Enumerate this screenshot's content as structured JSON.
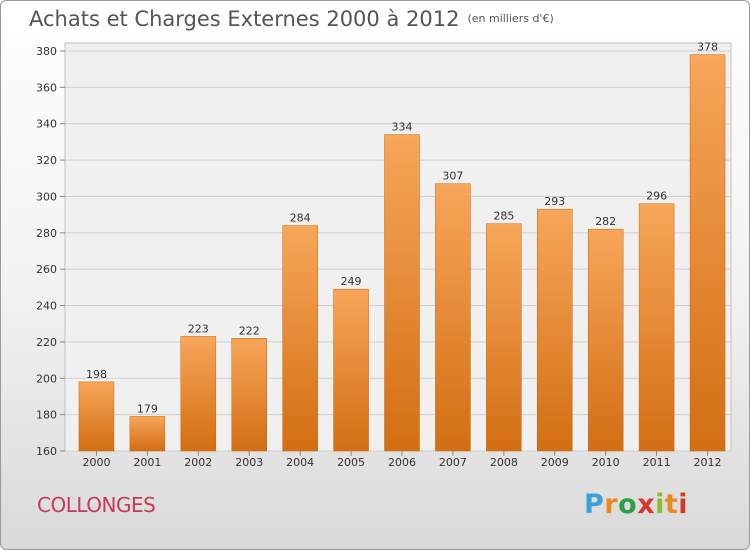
{
  "title": "Achats et Charges Externes 2000 à 2012",
  "subtitle": "(en milliers d'€)",
  "commune": "COLLONGES",
  "logo": {
    "letters": [
      "P",
      "r",
      "o",
      "x",
      "i",
      "t",
      "i"
    ]
  },
  "chart_data": {
    "type": "bar",
    "title": "Achats et Charges Externes 2000 à 2012",
    "subtitle": "(en milliers d'€)",
    "categories": [
      "2000",
      "2001",
      "2002",
      "2003",
      "2004",
      "2005",
      "2006",
      "2007",
      "2008",
      "2009",
      "2010",
      "2011",
      "2012"
    ],
    "values": [
      198,
      179,
      223,
      222,
      284,
      249,
      334,
      307,
      285,
      293,
      282,
      296,
      378
    ],
    "ylim": [
      160,
      380
    ],
    "yticks": [
      160,
      180,
      200,
      220,
      240,
      260,
      280,
      300,
      320,
      340,
      360,
      380
    ],
    "grid": true,
    "bar_color": "#f0913a",
    "xlabel": "",
    "ylabel": ""
  }
}
